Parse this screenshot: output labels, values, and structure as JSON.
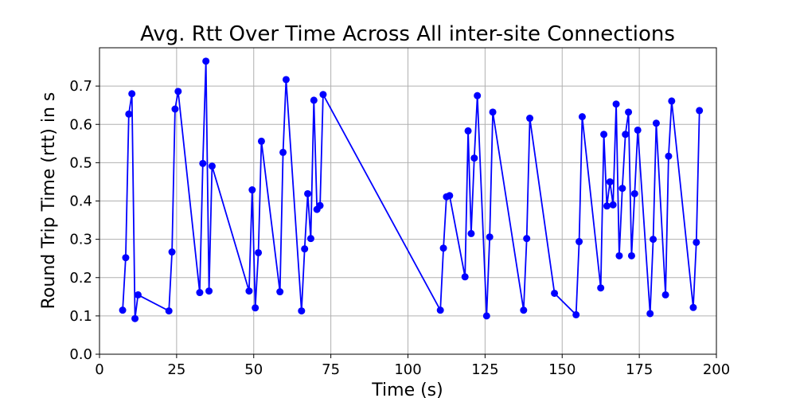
{
  "chart_data": {
    "type": "line",
    "title": "Avg. Rtt Over Time Across All inter-site Connections",
    "xlabel": "Time (s)",
    "ylabel": "Round Trip Time (rtt) in s",
    "xlim": [
      0,
      200
    ],
    "ylim": [
      0,
      0.8
    ],
    "xticks": [
      0,
      25,
      50,
      75,
      100,
      125,
      150,
      175,
      200
    ],
    "xtick_labels": [
      "0",
      "25",
      "50",
      "75",
      "100",
      "125",
      "150",
      "175",
      "200"
    ],
    "yticks": [
      0.0,
      0.1,
      0.2,
      0.3,
      0.4,
      0.5,
      0.6,
      0.7
    ],
    "ytick_labels": [
      "0.0",
      "0.1",
      "0.2",
      "0.3",
      "0.4",
      "0.5",
      "0.6",
      "0.7"
    ],
    "grid": true,
    "line_color": "#0000ff",
    "marker": "circle",
    "series": [
      {
        "x": [
          7.5,
          8.5,
          9.5,
          10.5,
          11.5,
          12.5,
          22.5,
          23.5,
          24.5,
          25.5,
          32.5,
          33.5,
          34.5,
          35.5,
          36.5,
          48.5,
          49.5,
          50.5,
          51.5,
          52.5,
          58.5,
          59.5,
          60.5,
          65.5,
          66.5,
          67.5,
          68.5,
          69.5,
          70.5,
          71.5,
          72.5,
          110.5,
          111.5,
          112.5,
          113.5,
          118.5,
          119.5,
          120.5,
          121.5,
          122.5,
          125.5,
          126.5,
          127.5,
          137.5,
          138.5,
          139.5,
          147.5,
          154.5,
          155.5,
          156.5,
          162.5,
          163.5,
          164.5,
          165.5,
          166.5,
          167.5,
          168.5,
          169.5,
          170.5,
          171.5,
          172.5,
          173.5,
          174.5,
          178.5,
          179.5,
          180.5,
          183.5,
          184.5,
          185.5,
          192.5,
          193.5,
          194.5
        ],
        "y": [
          0.115,
          0.252,
          0.627,
          0.68,
          0.093,
          0.155,
          0.113,
          0.267,
          0.64,
          0.686,
          0.161,
          0.498,
          0.765,
          0.165,
          0.491,
          0.165,
          0.429,
          0.121,
          0.265,
          0.556,
          0.163,
          0.527,
          0.717,
          0.113,
          0.275,
          0.419,
          0.302,
          0.663,
          0.378,
          0.388,
          0.678,
          0.115,
          0.277,
          0.411,
          0.414,
          0.202,
          0.583,
          0.315,
          0.512,
          0.675,
          0.1,
          0.306,
          0.632,
          0.115,
          0.302,
          0.616,
          0.159,
          0.103,
          0.294,
          0.62,
          0.173,
          0.574,
          0.387,
          0.45,
          0.39,
          0.653,
          0.257,
          0.433,
          0.574,
          0.632,
          0.257,
          0.419,
          0.585,
          0.106,
          0.3,
          0.603,
          0.155,
          0.517,
          0.661,
          0.122,
          0.292,
          0.636
        ]
      }
    ]
  }
}
